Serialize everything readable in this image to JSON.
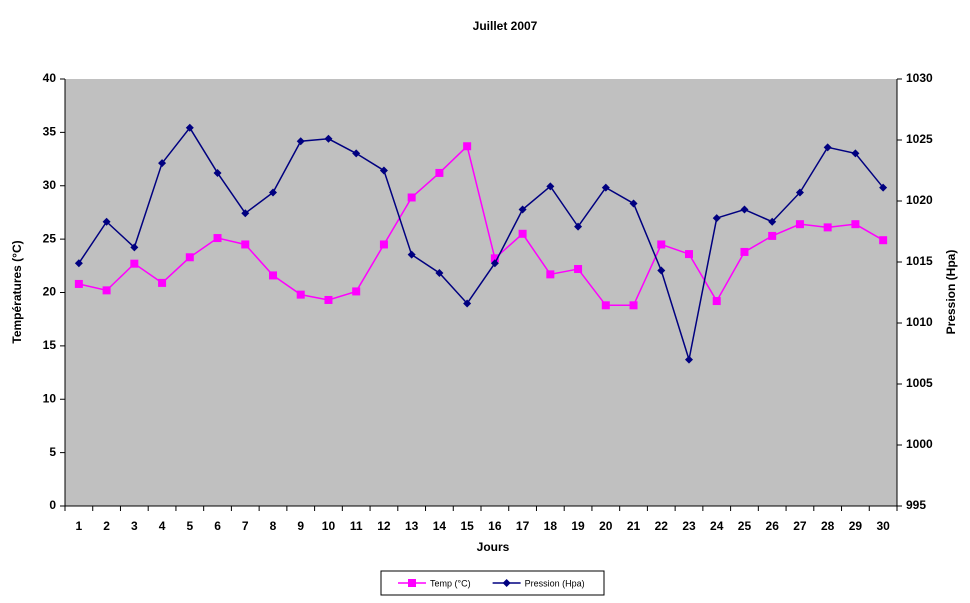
{
  "chart_data": {
    "type": "line",
    "title": "Juillet 2007",
    "xlabel": "Jours",
    "ylabel": "Températures (°C)",
    "y2label": "Pression (Hpa)",
    "categories": [
      "1",
      "2",
      "3",
      "4",
      "5",
      "6",
      "7",
      "8",
      "9",
      "10",
      "11",
      "12",
      "13",
      "14",
      "15",
      "16",
      "17",
      "18",
      "19",
      "20",
      "21",
      "22",
      "23",
      "24",
      "25",
      "26",
      "27",
      "28",
      "29",
      "30"
    ],
    "series": [
      {
        "name": "Temp (°C)",
        "color": "#ff00ff",
        "marker": "square",
        "values": [
          20.8,
          20.2,
          22.7,
          20.9,
          23.3,
          25.1,
          24.5,
          21.6,
          19.8,
          19.3,
          20.1,
          24.5,
          28.9,
          31.2,
          33.7,
          23.2,
          25.5,
          21.7,
          22.2,
          18.8,
          18.8,
          24.5,
          23.6,
          19.2,
          23.8,
          25.3,
          26.4,
          26.1,
          26.4,
          24.9
        ]
      },
      {
        "name": "Pression (Hpa)",
        "color": "#000080",
        "marker": "diamond",
        "axis": "y2",
        "values": [
          1014.9,
          1018.3,
          1016.2,
          1023.1,
          1026.0,
          1022.3,
          1019.0,
          1020.7,
          1024.9,
          1025.1,
          1023.9,
          1022.5,
          1015.6,
          1014.1,
          1011.6,
          1014.9,
          1019.3,
          1021.2,
          1017.9,
          1021.1,
          1019.8,
          1014.3,
          1007.0,
          1018.6,
          1019.3,
          1018.3,
          1020.7,
          1024.4,
          1023.9,
          1021.1
        ]
      }
    ],
    "ylim": [
      0,
      40
    ],
    "yticks": [
      0,
      5,
      10,
      15,
      20,
      25,
      30,
      35,
      40
    ],
    "y2lim": [
      995,
      1030
    ],
    "y2ticks": [
      995,
      1000,
      1005,
      1010,
      1015,
      1020,
      1025,
      1030
    ],
    "grid": false,
    "legend": "bottom",
    "plot_background": "#c0c0c0"
  }
}
